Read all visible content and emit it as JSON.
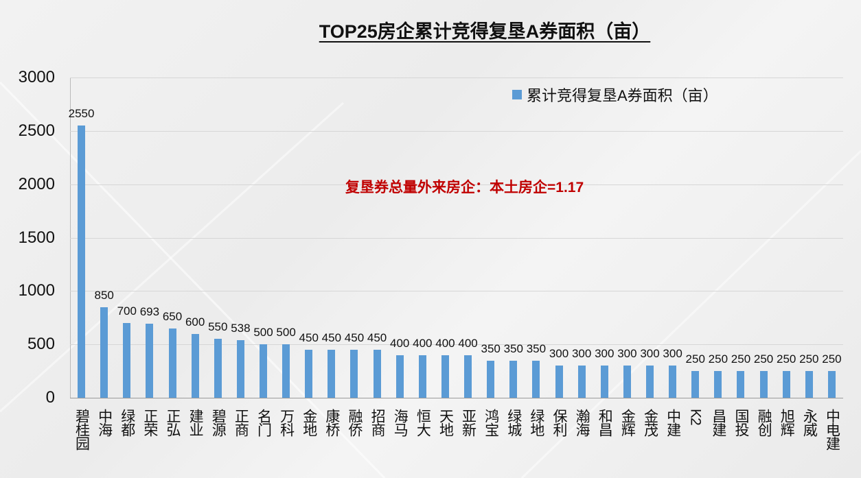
{
  "title": "TOP25房企累计竞得复垦A券面积（亩）",
  "legend": {
    "label": "累计竞得复垦A券面积（亩）",
    "color": "#5b9bd5"
  },
  "annotation": "复垦券总量外来房企：本土房企=1.17",
  "y_ticks": [
    "3000",
    "2500",
    "2000",
    "1500",
    "1000",
    "500",
    "0"
  ],
  "chart_data": {
    "type": "bar",
    "title": "TOP25房企累计竞得复垦A券面积（亩）",
    "xlabel": "",
    "ylabel": "",
    "ylim": [
      0,
      3000
    ],
    "yticks": [
      0,
      500,
      1000,
      1500,
      2000,
      2500,
      3000
    ],
    "grid": true,
    "legend_position": "top-right",
    "annotations": [
      "复垦券总量外来房企：本土房企=1.17"
    ],
    "categories": [
      "碧桂园",
      "中海",
      "绿都",
      "正荣",
      "正弘",
      "建业",
      "碧源",
      "正商",
      "名门",
      "万科",
      "金地",
      "康桥",
      "融侨",
      "招商",
      "海马",
      "恒大",
      "天地",
      "亚新",
      "鸿宝",
      "绿城",
      "绿地",
      "保利",
      "瀚海",
      "和昌",
      "金辉",
      "金茂",
      "中建",
      "K2",
      "昌建",
      "国投",
      "融创",
      "旭辉",
      "永威",
      "中电建"
    ],
    "series": [
      {
        "name": "累计竞得复垦A券面积（亩）",
        "color": "#5b9bd5",
        "values": [
          2550,
          850,
          700,
          693,
          650,
          600,
          550,
          538,
          500,
          500,
          450,
          450,
          450,
          450,
          400,
          400,
          400,
          400,
          350,
          350,
          350,
          300,
          300,
          300,
          300,
          300,
          300,
          250,
          250,
          250,
          250,
          250,
          250,
          250
        ]
      }
    ]
  }
}
